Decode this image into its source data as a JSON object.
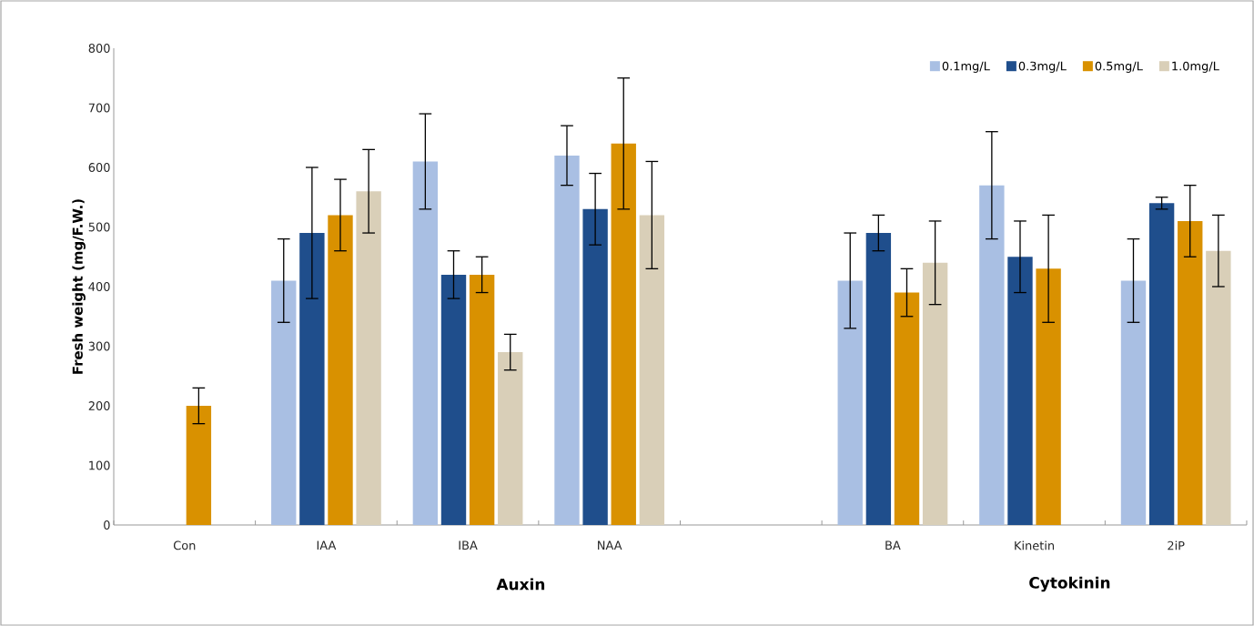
{
  "chart_data": {
    "type": "bar",
    "ylabel": "Fresh weight (mg/F.W.)",
    "categories": [
      "Con",
      "IAA",
      "IBA",
      "NAA",
      null,
      "BA",
      "Kinetin",
      "2iP"
    ],
    "series": [
      {
        "name": "0.1mg/L",
        "color": "#a9bfe3",
        "values": [
          null,
          410,
          610,
          620,
          null,
          410,
          570,
          410
        ],
        "errors": [
          null,
          70,
          80,
          50,
          null,
          80,
          90,
          70
        ]
      },
      {
        "name": "0.3mg/L",
        "color": "#1f4e8c",
        "values": [
          null,
          490,
          420,
          530,
          null,
          490,
          450,
          540
        ],
        "errors": [
          null,
          110,
          40,
          60,
          null,
          30,
          60,
          10
        ]
      },
      {
        "name": "0.5mg/L",
        "color": "#d99100",
        "values": [
          200,
          520,
          420,
          640,
          null,
          390,
          430,
          510
        ],
        "errors": [
          30,
          60,
          30,
          110,
          null,
          40,
          90,
          60
        ]
      },
      {
        "name": "1.0mg/L",
        "color": "#d9cfb8",
        "values": [
          null,
          560,
          290,
          520,
          null,
          440,
          null,
          460
        ],
        "errors": [
          null,
          70,
          30,
          90,
          null,
          70,
          null,
          60
        ]
      }
    ],
    "ylim": [
      0,
      800
    ],
    "yticks": [
      0,
      100,
      200,
      300,
      400,
      500,
      600,
      700,
      800
    ],
    "legend": "top right",
    "grid": false,
    "annotations": [
      "Auxin",
      "Cytokinin"
    ]
  }
}
